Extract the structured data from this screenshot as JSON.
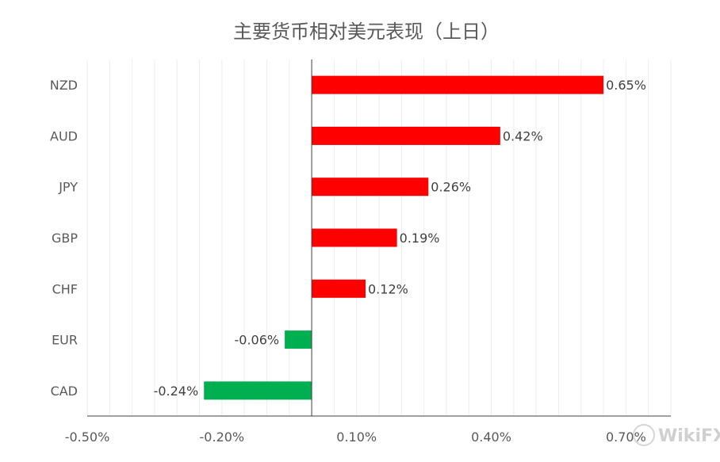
{
  "chart_data": {
    "type": "bar",
    "orientation": "horizontal",
    "title": "主要货币相对美元表现（上日）",
    "categories": [
      "NZD",
      "AUD",
      "JPY",
      "GBP",
      "CHF",
      "EUR",
      "CAD"
    ],
    "values": [
      0.65,
      0.42,
      0.26,
      0.19,
      0.12,
      -0.06,
      -0.24
    ],
    "data_labels": [
      "0.65%",
      "0.42%",
      "0.26%",
      "0.19%",
      "0.12%",
      "-0.06%",
      "-0.24%"
    ],
    "xlim": [
      -0.5,
      0.8
    ],
    "x_ticks": [
      -0.5,
      -0.2,
      0.1,
      0.4,
      0.7
    ],
    "x_tick_labels": [
      "-0.50%",
      "-0.20%",
      "0.10%",
      "0.40%",
      "0.70%"
    ],
    "grid": true,
    "legend": "none",
    "colors": {
      "positive": "#ff0000",
      "negative": "#00b050"
    }
  },
  "watermark": "WikiFX"
}
